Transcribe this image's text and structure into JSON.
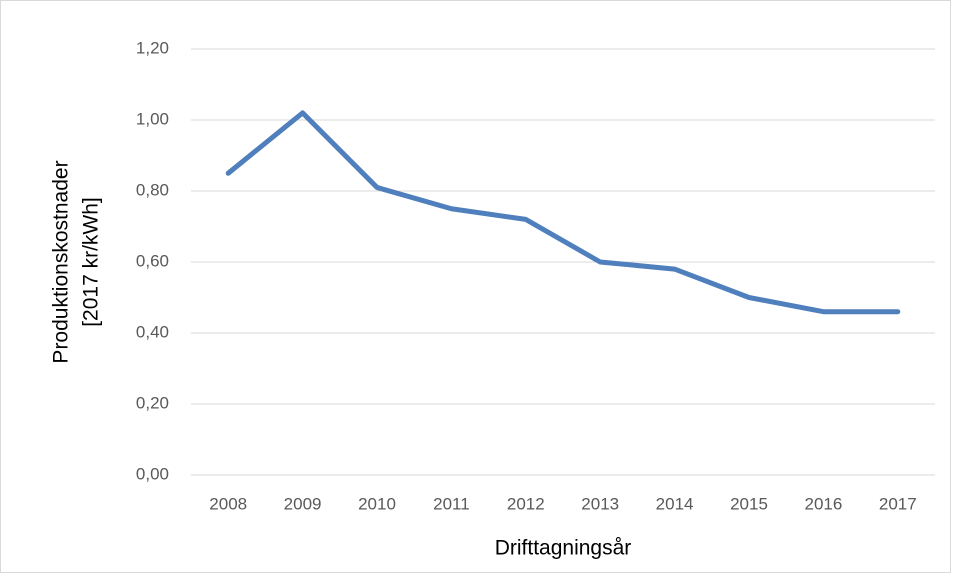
{
  "chart_data": {
    "type": "line",
    "ylabel": [
      "Produktionskostnader",
      "[2017 kr/kWh]"
    ],
    "xlabel": "Drifttagningsår",
    "categories": [
      "2008",
      "2009",
      "2010",
      "2011",
      "2012",
      "2013",
      "2014",
      "2015",
      "2016",
      "2017"
    ],
    "values": [
      0.85,
      1.02,
      0.81,
      0.75,
      0.72,
      0.6,
      0.58,
      0.5,
      0.46,
      0.46
    ],
    "color": "#4f7fbc",
    "ylim": [
      0,
      1.2
    ],
    "yticks": [
      {
        "value": 0,
        "label": "0,00"
      },
      {
        "value": 0.2,
        "label": "0,20"
      },
      {
        "value": 0.4,
        "label": "0,40"
      },
      {
        "value": 0.6,
        "label": "0,60"
      },
      {
        "value": 0.8,
        "label": "0,80"
      },
      {
        "value": 1.0,
        "label": "1,00"
      },
      {
        "value": 1.2,
        "label": "1,20"
      }
    ],
    "grid": true
  }
}
